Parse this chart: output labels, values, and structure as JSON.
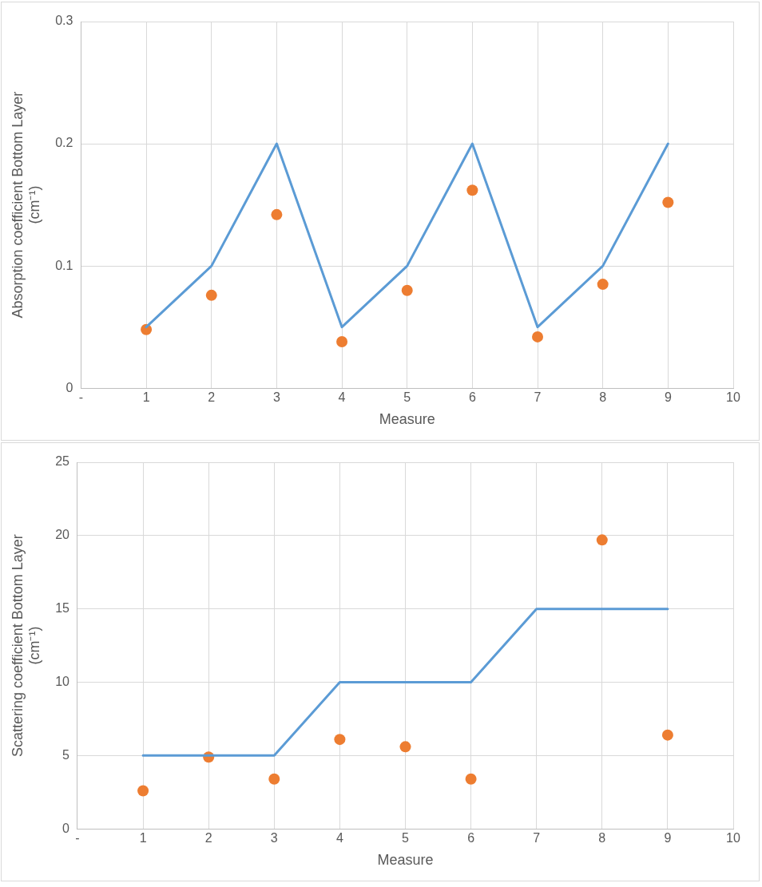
{
  "chart_data": [
    {
      "type": "line",
      "xlabel": "Measure",
      "ylabel": "Absorption coefficient Bottom Layer (cm⁻¹)",
      "x": [
        1,
        2,
        3,
        4,
        5,
        6,
        7,
        8,
        9
      ],
      "series": [
        {
          "marker": "none",
          "color": "#5b9bd5",
          "values": [
            0.05,
            0.1,
            0.2,
            0.05,
            0.1,
            0.2,
            0.05,
            0.1,
            0.2
          ]
        },
        {
          "type": "scatter",
          "marker": "circle",
          "color": "#ed7d31",
          "values": [
            0.048,
            0.076,
            0.142,
            0.038,
            0.08,
            0.162,
            0.042,
            0.085,
            0.152
          ]
        }
      ],
      "xlim": [
        0,
        10
      ],
      "xticks": [
        {
          "value": 0,
          "label": "-"
        },
        1,
        2,
        3,
        4,
        5,
        6,
        7,
        8,
        9,
        10
      ],
      "ylim": [
        0,
        0.3
      ],
      "yticks": [
        0,
        0.1,
        0.2,
        0.3
      ],
      "grid": true
    },
    {
      "type": "line",
      "xlabel": "Measure",
      "ylabel": "Scattering coefficient Bottom Layer (cm⁻¹)",
      "x": [
        1,
        2,
        3,
        4,
        5,
        6,
        7,
        8,
        9
      ],
      "series": [
        {
          "marker": "none",
          "color": "#5b9bd5",
          "values": [
            5,
            5,
            5,
            10,
            10,
            10,
            15,
            15,
            15
          ]
        },
        {
          "type": "scatter",
          "marker": "circle",
          "color": "#ed7d31",
          "values": [
            2.6,
            4.9,
            3.4,
            6.1,
            5.6,
            3.4,
            null,
            19.7,
            6.4
          ]
        }
      ],
      "xlim": [
        0,
        10
      ],
      "xticks": [
        {
          "value": 0,
          "label": "-"
        },
        1,
        2,
        3,
        4,
        5,
        6,
        7,
        8,
        9,
        10
      ],
      "ylim": [
        0,
        25
      ],
      "yticks": [
        0,
        5,
        10,
        15,
        20,
        25
      ],
      "grid": true
    }
  ]
}
